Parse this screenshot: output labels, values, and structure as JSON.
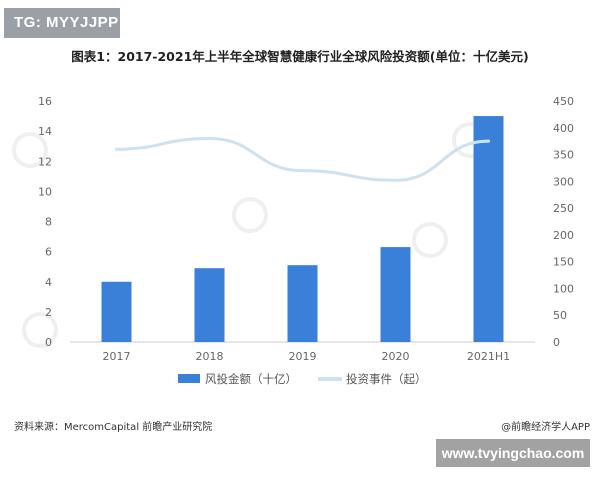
{
  "badge": "TG: MYYJJPP",
  "footer": {
    "source": "资料来源：MercomCapital 前瞻产业研究院",
    "brand": "@前瞻经济学人APP",
    "site": "www.tvyingchao.com"
  },
  "chart_data": {
    "type": "bar",
    "title": "图表1：2017-2021年上半年全球智慧健康行业全球风险投资额(单位：十亿美元)",
    "categories": [
      "2017",
      "2018",
      "2019",
      "2020",
      "2021H1"
    ],
    "series": [
      {
        "name": "风投金额（十亿）",
        "type": "bar",
        "axis": "left",
        "color": "#3a80d9",
        "values": [
          4.0,
          4.9,
          5.1,
          6.3,
          15.0
        ]
      },
      {
        "name": "投资事件（起）",
        "type": "line",
        "axis": "right",
        "color": "#cfe0ee",
        "values": [
          360,
          380,
          320,
          302,
          375
        ]
      }
    ],
    "y_left": {
      "range": [
        0,
        16
      ],
      "ticks": [
        "0",
        "2",
        "4",
        "6",
        "8",
        "10",
        "12",
        "14",
        "16"
      ]
    },
    "y_right": {
      "range": [
        0,
        450
      ],
      "ticks": [
        "0",
        "50",
        "100",
        "150",
        "200",
        "250",
        "300",
        "350",
        "400",
        "450"
      ]
    },
    "grid": false,
    "legend": "bottom"
  }
}
